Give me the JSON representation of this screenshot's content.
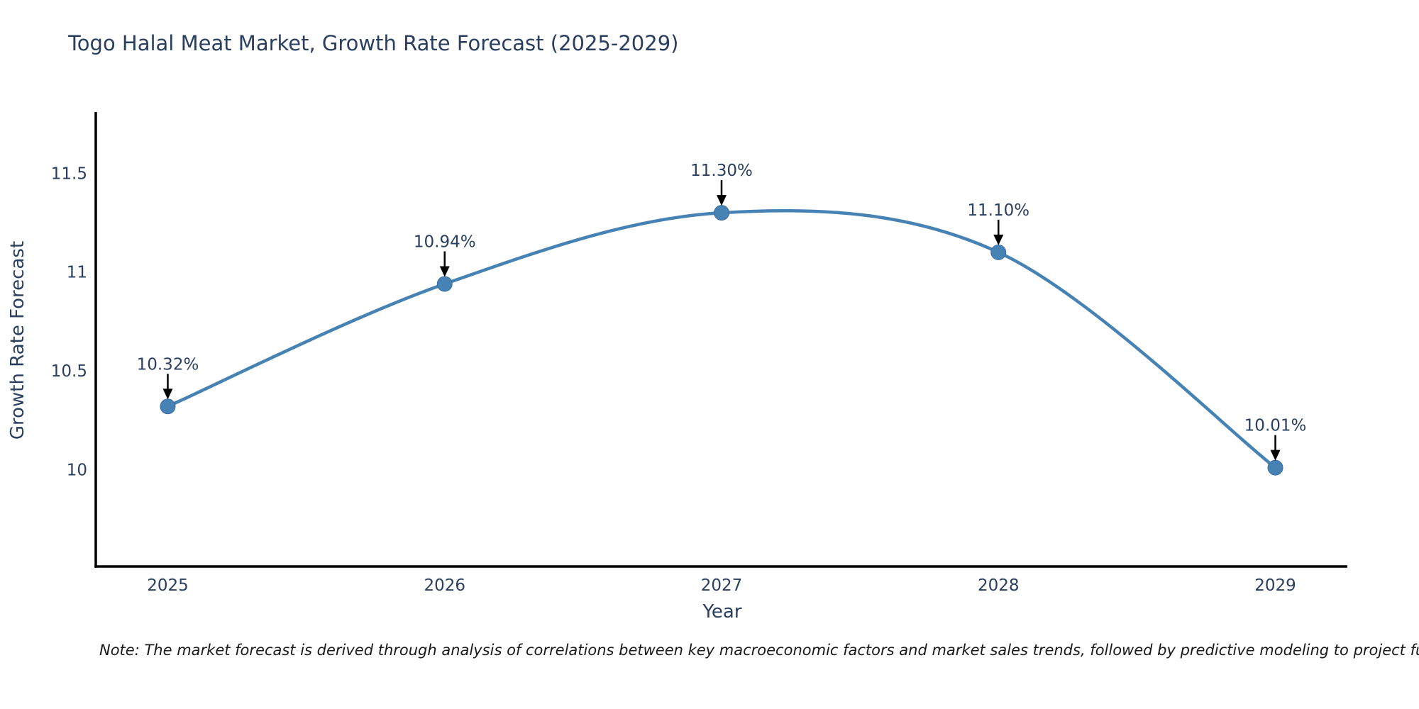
{
  "chart": {
    "title": "Togo Halal Meat Market, Growth Rate Forecast (2025-2029)",
    "xlabel": "Year",
    "ylabel": "Growth Rate Forecast",
    "note": "Note: The market forecast is derived through analysis of correlations between key macroeconomic factors and market sales trends, followed by predictive modeling to project future sal",
    "colors": {
      "line": "#4682b4",
      "marker_fill": "#4682b4",
      "marker_stroke": "#3a6d9e",
      "axis": "#000000",
      "text": "#2a3f5f",
      "arrow": "#000000",
      "background": "#ffffff"
    }
  },
  "chart_data": {
    "type": "line",
    "line_shape": "spline",
    "title": "Togo Halal Meat Market, Growth Rate Forecast (2025-2029)",
    "xlabel": "Year",
    "ylabel": "Growth Rate Forecast",
    "categories": [
      2025,
      2026,
      2027,
      2028,
      2029
    ],
    "series": [
      {
        "name": "Growth Rate Forecast",
        "values": [
          10.32,
          10.94,
          11.3,
          11.1,
          10.01
        ],
        "point_labels": [
          "10.32%",
          "10.94%",
          "11.30%",
          "11.10%",
          "10.01%"
        ]
      }
    ],
    "yticks": [
      {
        "value": 10,
        "label": "10"
      },
      {
        "value": 10.5,
        "label": "10.5"
      },
      {
        "value": 11,
        "label": "11"
      },
      {
        "value": 11.5,
        "label": "11.5"
      }
    ],
    "xlim": [
      2024.74,
      2029.26
    ],
    "ylim": [
      9.51,
      11.81
    ],
    "grid": false,
    "legend": false,
    "annotations": "each point labeled with percentage and downward arrow"
  }
}
